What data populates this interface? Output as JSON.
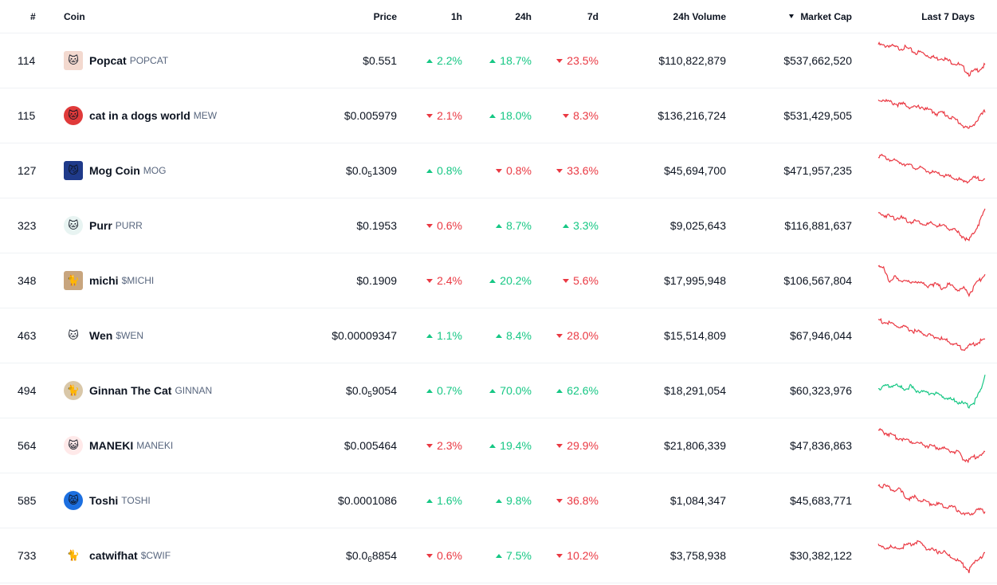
{
  "header": {
    "rank": "#",
    "coin": "Coin",
    "price": "Price",
    "h1": "1h",
    "h24": "24h",
    "d7": "7d",
    "volume": "24h Volume",
    "mcap": "Market Cap",
    "chart": "Last 7 Days",
    "sort_icon": "sort-desc-icon"
  },
  "colors": {
    "up": "#16c784",
    "down": "#ea3943"
  },
  "rows": [
    {
      "rank": "114",
      "name": "Popcat",
      "symbol": "POPCAT",
      "icon": "popcat-logo",
      "logo_bg": "#f3d9cf",
      "logo_glyph": "🐱",
      "price_pre": "$0.551",
      "price_sub": "",
      "price_post": "",
      "h1": "2.2%",
      "h1_dir": "up",
      "h24": "18.7%",
      "h24_dir": "up",
      "d7": "23.5%",
      "d7_dir": "down",
      "volume": "$110,822,879",
      "mcap": "$537,662,520",
      "trend": [
        0.92,
        0.88,
        0.9,
        0.85,
        0.82,
        0.84,
        0.78,
        0.7,
        0.72,
        0.65,
        0.6,
        0.55,
        0.58,
        0.5,
        0.45,
        0.4,
        0.3,
        0.15,
        0.22,
        0.28,
        0.38
      ],
      "chart_dir": "down"
    },
    {
      "rank": "115",
      "name": "cat in a dogs world",
      "symbol": "MEW",
      "icon": "mew-logo",
      "logo_bg": "#e03a3a",
      "logo_glyph": "🐱",
      "price_pre": "$0.005979",
      "price_sub": "",
      "price_post": "",
      "h1": "2.1%",
      "h1_dir": "down",
      "h24": "18.0%",
      "h24_dir": "up",
      "d7": "8.3%",
      "d7_dir": "down",
      "volume": "$136,216,724",
      "mcap": "$531,429,505",
      "trend": [
        0.9,
        0.92,
        0.85,
        0.82,
        0.78,
        0.8,
        0.72,
        0.7,
        0.74,
        0.66,
        0.62,
        0.55,
        0.58,
        0.5,
        0.42,
        0.35,
        0.22,
        0.15,
        0.3,
        0.45,
        0.62
      ],
      "chart_dir": "down"
    },
    {
      "rank": "127",
      "name": "Mog Coin",
      "symbol": "MOG",
      "icon": "mog-logo",
      "logo_bg": "#1f3a8a",
      "logo_glyph": "😼",
      "price_pre": "$0.0",
      "price_sub": "5",
      "price_post": "1309",
      "h1": "0.8%",
      "h1_dir": "up",
      "h24": "0.8%",
      "h24_dir": "down",
      "d7": "33.6%",
      "d7_dir": "down",
      "volume": "$45,694,700",
      "mcap": "$471,957,235",
      "trend": [
        0.9,
        0.85,
        0.8,
        0.75,
        0.72,
        0.68,
        0.62,
        0.58,
        0.55,
        0.5,
        0.45,
        0.42,
        0.38,
        0.35,
        0.3,
        0.28,
        0.2,
        0.25,
        0.3,
        0.28,
        0.3
      ],
      "chart_dir": "down"
    },
    {
      "rank": "323",
      "name": "Purr",
      "symbol": "PURR",
      "icon": "purr-logo",
      "logo_bg": "#e8f4f2",
      "logo_glyph": "🐱",
      "price_pre": "$0.1953",
      "price_sub": "",
      "price_post": "",
      "h1": "0.6%",
      "h1_dir": "down",
      "h24": "8.7%",
      "h24_dir": "up",
      "d7": "3.3%",
      "d7_dir": "up",
      "volume": "$9,025,643",
      "mcap": "$116,881,637",
      "trend": [
        0.82,
        0.78,
        0.75,
        0.7,
        0.72,
        0.65,
        0.6,
        0.62,
        0.58,
        0.52,
        0.55,
        0.5,
        0.48,
        0.45,
        0.4,
        0.3,
        0.2,
        0.1,
        0.35,
        0.6,
        0.92
      ],
      "chart_dir": "down"
    },
    {
      "rank": "348",
      "name": "michi",
      "symbol": "$MICHI",
      "icon": "michi-logo",
      "logo_bg": "#c8a57e",
      "logo_glyph": "🐈",
      "price_pre": "$0.1909",
      "price_sub": "",
      "price_post": "",
      "h1": "2.4%",
      "h1_dir": "down",
      "h24": "20.2%",
      "h24_dir": "up",
      "d7": "5.6%",
      "d7_dir": "down",
      "volume": "$17,995,948",
      "mcap": "$106,567,804",
      "trend": [
        0.92,
        0.8,
        0.5,
        0.6,
        0.45,
        0.55,
        0.4,
        0.5,
        0.45,
        0.35,
        0.42,
        0.38,
        0.3,
        0.4,
        0.35,
        0.25,
        0.3,
        0.15,
        0.35,
        0.5,
        0.7
      ],
      "chart_dir": "down"
    },
    {
      "rank": "463",
      "name": "Wen",
      "symbol": "$WEN",
      "icon": "wen-logo",
      "logo_bg": "#ffffff",
      "logo_glyph": "🐱",
      "price_pre": "$0.00009347",
      "price_sub": "",
      "price_post": "",
      "h1": "1.1%",
      "h1_dir": "up",
      "h24": "8.4%",
      "h24_dir": "up",
      "d7": "28.0%",
      "d7_dir": "down",
      "volume": "$15,514,809",
      "mcap": "$67,946,044",
      "trend": [
        0.92,
        0.85,
        0.82,
        0.78,
        0.72,
        0.7,
        0.65,
        0.6,
        0.58,
        0.52,
        0.5,
        0.45,
        0.4,
        0.35,
        0.3,
        0.22,
        0.15,
        0.22,
        0.28,
        0.35,
        0.4
      ],
      "chart_dir": "down"
    },
    {
      "rank": "494",
      "name": "Ginnan The Cat",
      "symbol": "GINNAN",
      "icon": "ginnan-logo",
      "logo_bg": "#d9c7a8",
      "logo_glyph": "🐈",
      "price_pre": "$0.0",
      "price_sub": "5",
      "price_post": "9054",
      "h1": "0.7%",
      "h1_dir": "up",
      "h24": "70.0%",
      "h24_dir": "up",
      "d7": "62.6%",
      "d7_dir": "up",
      "volume": "$18,291,054",
      "mcap": "$60,323,976",
      "trend": [
        0.55,
        0.62,
        0.6,
        0.65,
        0.58,
        0.55,
        0.6,
        0.5,
        0.48,
        0.42,
        0.45,
        0.4,
        0.35,
        0.3,
        0.25,
        0.2,
        0.15,
        0.1,
        0.2,
        0.45,
        0.92
      ],
      "chart_dir": "up"
    },
    {
      "rank": "564",
      "name": "MANEKI",
      "symbol": "MANEKI",
      "icon": "maneki-logo",
      "logo_bg": "#ffe9e9",
      "logo_glyph": "😺",
      "price_pre": "$0.005464",
      "price_sub": "",
      "price_post": "",
      "h1": "2.3%",
      "h1_dir": "down",
      "h24": "19.4%",
      "h24_dir": "up",
      "d7": "29.9%",
      "d7_dir": "down",
      "volume": "$21,806,339",
      "mcap": "$47,836,863",
      "trend": [
        0.9,
        0.85,
        0.8,
        0.72,
        0.7,
        0.65,
        0.62,
        0.58,
        0.55,
        0.5,
        0.48,
        0.45,
        0.42,
        0.4,
        0.35,
        0.3,
        0.15,
        0.12,
        0.2,
        0.25,
        0.3
      ],
      "chart_dir": "down"
    },
    {
      "rank": "585",
      "name": "Toshi",
      "symbol": "TOSHI",
      "icon": "toshi-logo",
      "logo_bg": "#1c6fe0",
      "logo_glyph": "😸",
      "price_pre": "$0.0001086",
      "price_sub": "",
      "price_post": "",
      "h1": "1.6%",
      "h1_dir": "up",
      "h24": "9.8%",
      "h24_dir": "up",
      "d7": "36.8%",
      "d7_dir": "down",
      "volume": "$1,084,347",
      "mcap": "$45,683,771",
      "trend": [
        0.92,
        0.88,
        0.85,
        0.75,
        0.78,
        0.6,
        0.55,
        0.58,
        0.5,
        0.45,
        0.42,
        0.4,
        0.38,
        0.35,
        0.32,
        0.25,
        0.12,
        0.15,
        0.2,
        0.25,
        0.22
      ],
      "chart_dir": "down"
    },
    {
      "rank": "733",
      "name": "catwifhat",
      "symbol": "$CWIF",
      "icon": "catwifhat-logo",
      "logo_bg": "#ffffff",
      "logo_glyph": "🐈",
      "price_pre": "$0.0",
      "price_sub": "6",
      "price_post": "8854",
      "h1": "0.6%",
      "h1_dir": "down",
      "h24": "7.5%",
      "h24_dir": "up",
      "d7": "10.2%",
      "d7_dir": "down",
      "volume": "$3,758,938",
      "mcap": "$30,382,122",
      "trend": [
        0.75,
        0.7,
        0.72,
        0.68,
        0.7,
        0.75,
        0.78,
        0.85,
        0.8,
        0.7,
        0.65,
        0.6,
        0.62,
        0.5,
        0.45,
        0.35,
        0.25,
        0.1,
        0.3,
        0.45,
        0.55
      ],
      "chart_dir": "down"
    }
  ]
}
